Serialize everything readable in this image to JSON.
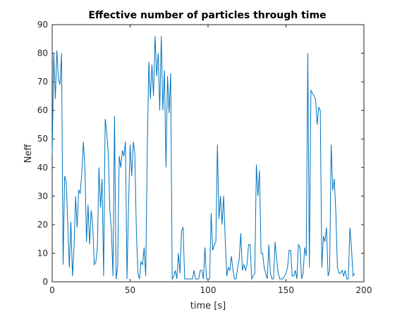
{
  "chart_data": {
    "type": "line",
    "title": "Effective number of particles through time",
    "xlabel": "time [s]",
    "ylabel": "Neff",
    "xlim": [
      0,
      200
    ],
    "ylim": [
      0,
      90
    ],
    "xticks": [
      0,
      50,
      100,
      150,
      200
    ],
    "yticks": [
      0,
      10,
      20,
      30,
      40,
      50,
      60,
      70,
      80,
      90
    ],
    "grid": false,
    "line_color": "#0072BD",
    "series": [
      {
        "x": [
          0,
          1,
          2,
          3,
          4,
          5,
          6,
          7,
          8,
          9,
          10,
          11,
          12,
          13,
          14,
          15,
          16,
          17,
          18,
          19,
          20,
          21,
          22,
          23,
          24,
          25,
          26,
          27,
          28,
          29,
          30,
          31,
          32,
          33,
          34,
          35,
          36,
          37,
          38,
          39,
          40,
          41,
          42,
          43,
          44,
          45,
          46,
          47,
          48,
          49,
          50,
          51,
          52,
          53,
          54,
          55,
          56,
          57,
          58,
          59,
          60,
          61,
          62,
          63,
          64,
          65,
          66,
          67,
          68,
          69,
          70,
          71,
          72,
          73,
          74,
          75,
          76,
          77,
          78,
          79,
          80,
          81,
          82,
          83,
          84,
          85,
          86,
          87,
          88,
          89,
          90,
          91,
          92,
          93,
          94,
          95,
          96,
          97,
          98,
          99,
          100,
          101,
          102,
          103,
          104,
          105,
          106,
          107,
          108,
          109,
          110,
          111,
          112,
          113,
          114,
          115,
          116,
          117,
          118,
          119,
          120,
          121,
          122,
          123,
          124,
          125,
          126,
          127,
          128,
          129,
          130,
          131,
          132,
          133,
          134,
          135,
          136,
          137,
          138,
          139,
          140,
          141,
          142,
          143,
          144,
          145,
          146,
          147,
          148,
          149,
          150,
          151,
          152,
          153,
          154,
          155,
          156,
          157,
          158,
          159,
          160,
          161,
          162,
          163,
          164,
          165,
          166,
          167,
          168,
          169,
          170,
          171,
          172,
          173,
          174,
          175,
          176,
          177,
          178,
          179,
          180,
          181,
          182,
          183,
          184,
          185,
          186,
          187,
          188,
          189,
          190,
          191,
          192,
          193,
          194
        ],
        "y": [
          45,
          80,
          64,
          81,
          71,
          69,
          80,
          6,
          37,
          35,
          20,
          5,
          21,
          2,
          12,
          30,
          19,
          32,
          31,
          38,
          49,
          40,
          14,
          27,
          13,
          25,
          20,
          6,
          7,
          12,
          40,
          26,
          36,
          2,
          57,
          52,
          45,
          25,
          18,
          2,
          58,
          1,
          5,
          44,
          40,
          46,
          44,
          49,
          1,
          27,
          48,
          37,
          49,
          45,
          18,
          3,
          1,
          7,
          6,
          12,
          2,
          46,
          77,
          64,
          76,
          65,
          86,
          72,
          80,
          60,
          86,
          60,
          74,
          40,
          72,
          59,
          73,
          1,
          2,
          4,
          1,
          10,
          3,
          18,
          19,
          1,
          1,
          1,
          1,
          1,
          1,
          4,
          1,
          1,
          1,
          4,
          4,
          1,
          12,
          1,
          1,
          1,
          24,
          11,
          13,
          14,
          48,
          22,
          30,
          20,
          30,
          15,
          2,
          5,
          4,
          9,
          4,
          1,
          1,
          5,
          8,
          17,
          4,
          6,
          4,
          6,
          13,
          13,
          1,
          2,
          3,
          41,
          30,
          39,
          10,
          10,
          5,
          3,
          1,
          13,
          3,
          1,
          1,
          14,
          8,
          3,
          1,
          1,
          1,
          2,
          3,
          5,
          11,
          11,
          2,
          2,
          4,
          1,
          13,
          12,
          1,
          3,
          12,
          9,
          80,
          5,
          67,
          66,
          65,
          64,
          55,
          61,
          60,
          5,
          16,
          14,
          19,
          2,
          4,
          48,
          32,
          36,
          24,
          5,
          3,
          3,
          4,
          2,
          4,
          1,
          1,
          19,
          12,
          2,
          3
        ]
      }
    ]
  }
}
